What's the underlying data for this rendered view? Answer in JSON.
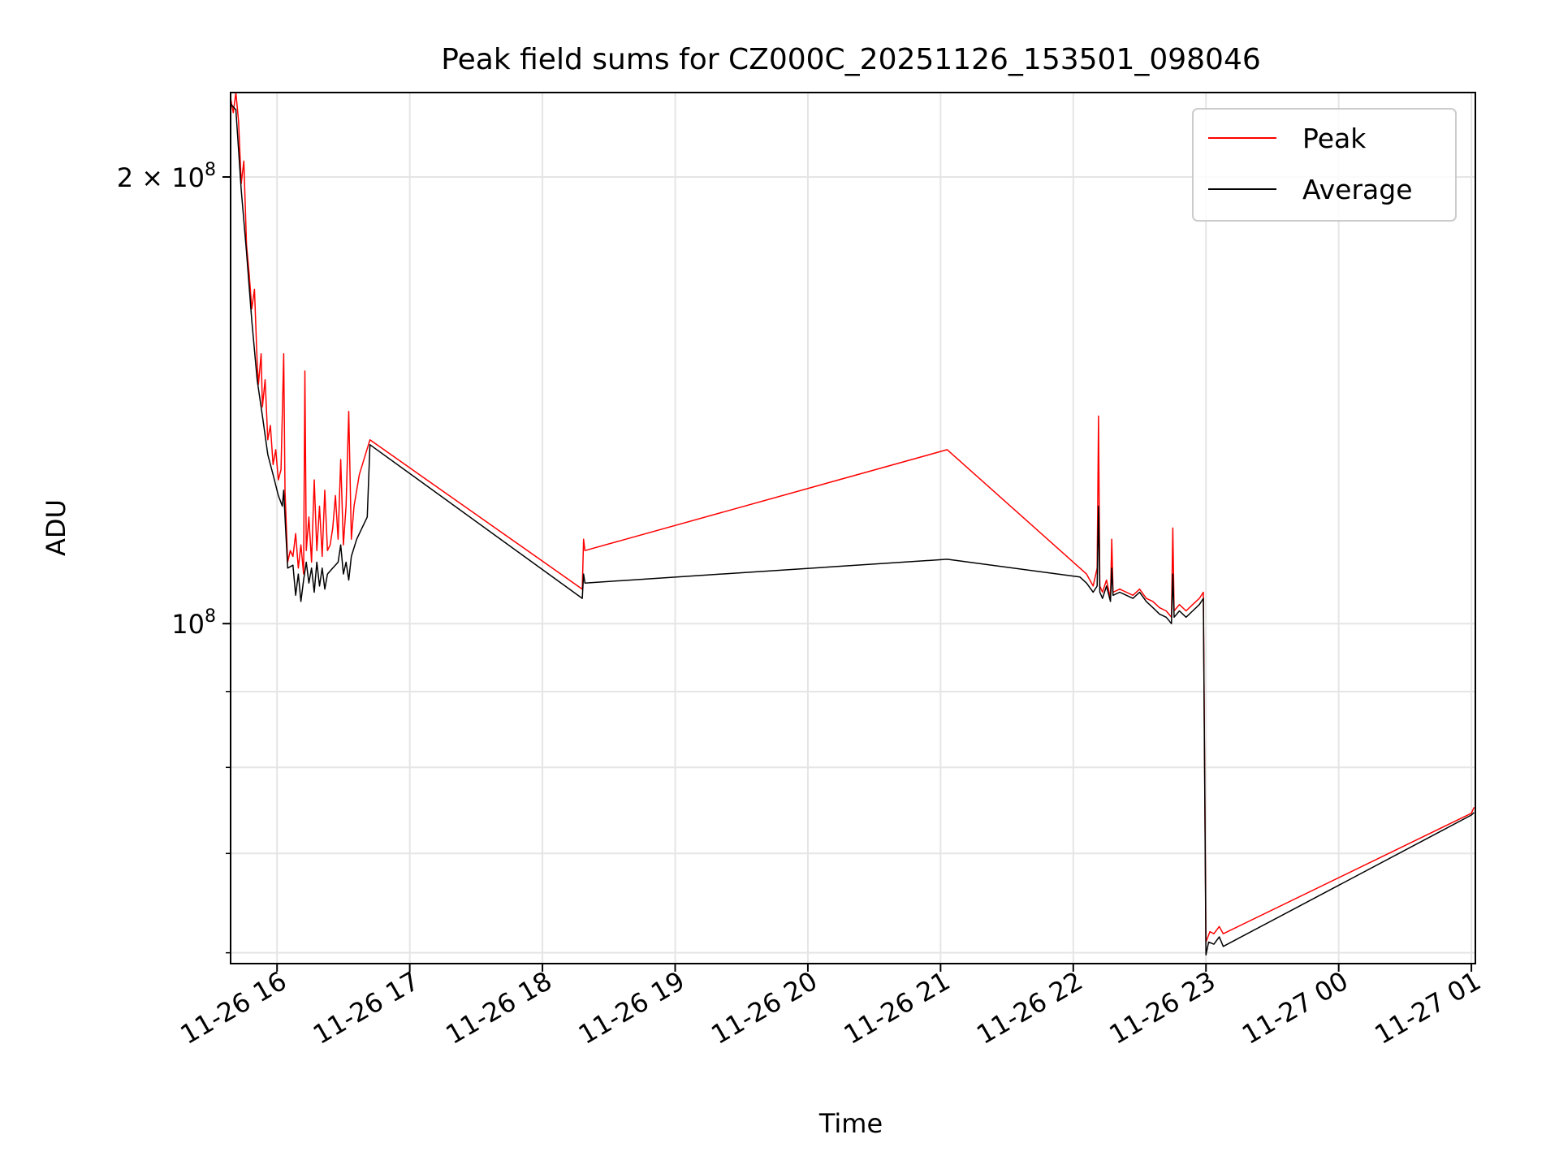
{
  "chart_data": {
    "type": "line",
    "title": "Peak field sums for CZ000C_20251126_153501_098046",
    "xlabel": "Time",
    "ylabel": "ADU",
    "yscale": "log",
    "ylim": [
      59000000,
      228000000
    ],
    "xlim_hours": [
      15.65,
      25.03
    ],
    "grid": true,
    "legend_position": "upper right",
    "x_ticks": [
      {
        "hour": 16,
        "label": "11-26 16"
      },
      {
        "hour": 17,
        "label": "11-26 17"
      },
      {
        "hour": 18,
        "label": "11-26 18"
      },
      {
        "hour": 19,
        "label": "11-26 19"
      },
      {
        "hour": 20,
        "label": "11-26 20"
      },
      {
        "hour": 21,
        "label": "11-26 21"
      },
      {
        "hour": 22,
        "label": "11-26 22"
      },
      {
        "hour": 23,
        "label": "11-26 23"
      },
      {
        "hour": 24,
        "label": "11-27 00"
      },
      {
        "hour": 25,
        "label": "11-27 01"
      }
    ],
    "y_major_ticks": [
      {
        "value": 100000000,
        "base": "10",
        "exp": "8",
        "mult": ""
      },
      {
        "value": 200000000,
        "base": "10",
        "exp": "8",
        "mult": "2 × "
      }
    ],
    "y_minor_ticks": [
      60000000,
      70000000,
      80000000,
      90000000
    ],
    "series": [
      {
        "name": "Peak",
        "color": "#ff0000",
        "points": [
          [
            15.65,
            226000000
          ],
          [
            15.67,
            221000000
          ],
          [
            15.69,
            228000000
          ],
          [
            15.71,
            218000000
          ],
          [
            15.73,
            198000000
          ],
          [
            15.75,
            205000000
          ],
          [
            15.77,
            180000000
          ],
          [
            15.79,
            172000000
          ],
          [
            15.81,
            163000000
          ],
          [
            15.83,
            168000000
          ],
          [
            15.85,
            150000000
          ],
          [
            15.86,
            145000000
          ],
          [
            15.88,
            152000000
          ],
          [
            15.89,
            140000000
          ],
          [
            15.91,
            146000000
          ],
          [
            15.93,
            133000000
          ],
          [
            15.95,
            136000000
          ],
          [
            15.97,
            128000000
          ],
          [
            15.99,
            131000000
          ],
          [
            16.01,
            125000000
          ],
          [
            16.03,
            127000000
          ],
          [
            16.05,
            152000000
          ],
          [
            16.06,
            123000000
          ],
          [
            16.08,
            110000000
          ],
          [
            16.1,
            112000000
          ],
          [
            16.12,
            111000000
          ],
          [
            16.14,
            115000000
          ],
          [
            16.16,
            109000000
          ],
          [
            16.18,
            113000000
          ],
          [
            16.2,
            108000000
          ],
          [
            16.21,
            148000000
          ],
          [
            16.22,
            112000000
          ],
          [
            16.24,
            118000000
          ],
          [
            16.26,
            110000000
          ],
          [
            16.28,
            125000000
          ],
          [
            16.3,
            112000000
          ],
          [
            16.32,
            120000000
          ],
          [
            16.34,
            111000000
          ],
          [
            16.36,
            123000000
          ],
          [
            16.38,
            112000000
          ],
          [
            16.4,
            113000000
          ],
          [
            16.42,
            116000000
          ],
          [
            16.44,
            122000000
          ],
          [
            16.46,
            114000000
          ],
          [
            16.48,
            129000000
          ],
          [
            16.5,
            113000000
          ],
          [
            16.52,
            120000000
          ],
          [
            16.54,
            139000000
          ],
          [
            16.56,
            114000000
          ],
          [
            16.58,
            120000000
          ],
          [
            16.62,
            126000000
          ],
          [
            16.7,
            133000000
          ],
          [
            18.3,
            105500000
          ],
          [
            18.31,
            114000000
          ],
          [
            18.32,
            112000000
          ],
          [
            21.05,
            131000000
          ],
          [
            22.05,
            109000000
          ],
          [
            22.1,
            108000000
          ],
          [
            22.15,
            106000000
          ],
          [
            22.18,
            109000000
          ],
          [
            22.19,
            138000000
          ],
          [
            22.2,
            106000000
          ],
          [
            22.22,
            105000000
          ],
          [
            22.25,
            107000000
          ],
          [
            22.28,
            104000000
          ],
          [
            22.29,
            114000000
          ],
          [
            22.3,
            105000000
          ],
          [
            22.35,
            105500000
          ],
          [
            22.4,
            105000000
          ],
          [
            22.45,
            104500000
          ],
          [
            22.5,
            105500000
          ],
          [
            22.55,
            104000000
          ],
          [
            22.6,
            103500000
          ],
          [
            22.65,
            102500000
          ],
          [
            22.7,
            102000000
          ],
          [
            22.72,
            101500000
          ],
          [
            22.74,
            101000000
          ],
          [
            22.75,
            116000000
          ],
          [
            22.76,
            102000000
          ],
          [
            22.8,
            103000000
          ],
          [
            22.85,
            102000000
          ],
          [
            22.9,
            103000000
          ],
          [
            22.95,
            104000000
          ],
          [
            22.98,
            105000000
          ],
          [
            23.0,
            61000000
          ],
          [
            23.03,
            62000000
          ],
          [
            23.06,
            61800000
          ],
          [
            23.1,
            62500000
          ],
          [
            23.13,
            61800000
          ],
          [
            25.0,
            74500000
          ],
          [
            25.02,
            75200000
          ]
        ]
      },
      {
        "name": "Average",
        "color": "#000000",
        "points": [
          [
            15.65,
            224000000
          ],
          [
            15.69,
            222000000
          ],
          [
            15.73,
            196000000
          ],
          [
            15.77,
            178000000
          ],
          [
            15.81,
            160000000
          ],
          [
            15.85,
            146000000
          ],
          [
            15.89,
            138000000
          ],
          [
            15.93,
            130000000
          ],
          [
            15.97,
            126000000
          ],
          [
            16.01,
            122000000
          ],
          [
            16.04,
            120000000
          ],
          [
            16.05,
            123000000
          ],
          [
            16.06,
            118000000
          ],
          [
            16.08,
            109000000
          ],
          [
            16.12,
            109500000
          ],
          [
            16.14,
            104500000
          ],
          [
            16.16,
            108000000
          ],
          [
            16.18,
            103500000
          ],
          [
            16.2,
            107000000
          ],
          [
            16.22,
            110000000
          ],
          [
            16.24,
            106500000
          ],
          [
            16.26,
            109000000
          ],
          [
            16.28,
            105000000
          ],
          [
            16.3,
            110000000
          ],
          [
            16.32,
            106000000
          ],
          [
            16.34,
            109000000
          ],
          [
            16.36,
            105500000
          ],
          [
            16.38,
            108000000
          ],
          [
            16.42,
            109000000
          ],
          [
            16.46,
            110000000
          ],
          [
            16.48,
            113000000
          ],
          [
            16.5,
            108000000
          ],
          [
            16.52,
            110000000
          ],
          [
            16.54,
            107000000
          ],
          [
            16.56,
            111000000
          ],
          [
            16.6,
            114000000
          ],
          [
            16.68,
            118000000
          ],
          [
            16.7,
            132000000
          ],
          [
            18.3,
            104000000
          ],
          [
            18.31,
            108000000
          ],
          [
            18.32,
            106500000
          ],
          [
            21.05,
            110500000
          ],
          [
            22.05,
            107500000
          ],
          [
            22.1,
            106500000
          ],
          [
            22.15,
            105000000
          ],
          [
            22.18,
            106000000
          ],
          [
            22.19,
            120000000
          ],
          [
            22.2,
            105000000
          ],
          [
            22.22,
            104000000
          ],
          [
            22.25,
            106000000
          ],
          [
            22.28,
            103500000
          ],
          [
            22.29,
            109000000
          ],
          [
            22.3,
            104500000
          ],
          [
            22.35,
            105000000
          ],
          [
            22.4,
            104500000
          ],
          [
            22.45,
            104000000
          ],
          [
            22.5,
            105000000
          ],
          [
            22.55,
            103500000
          ],
          [
            22.6,
            102500000
          ],
          [
            22.65,
            101500000
          ],
          [
            22.7,
            101000000
          ],
          [
            22.72,
            100500000
          ],
          [
            22.74,
            100000000
          ],
          [
            22.75,
            108000000
          ],
          [
            22.76,
            101000000
          ],
          [
            22.8,
            102000000
          ],
          [
            22.85,
            101000000
          ],
          [
            22.9,
            102000000
          ],
          [
            22.95,
            103000000
          ],
          [
            22.98,
            104000000
          ],
          [
            23.0,
            59800000
          ],
          [
            23.02,
            61000000
          ],
          [
            23.06,
            60800000
          ],
          [
            23.1,
            61500000
          ],
          [
            23.13,
            60600000
          ],
          [
            25.0,
            74300000
          ],
          [
            25.02,
            74600000
          ]
        ]
      }
    ]
  }
}
